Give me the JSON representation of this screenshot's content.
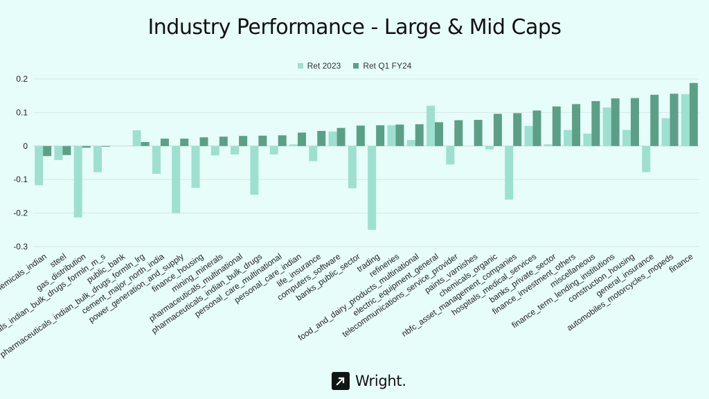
{
  "chart_data": {
    "type": "bar",
    "title": "Industry Performance - Large & Mid Caps",
    "xlabel": "",
    "ylabel": "",
    "ylim": [
      -0.3,
      0.2
    ],
    "yticks": [
      "0.2",
      "0.1",
      "0",
      "-0.1",
      "-0.2",
      "-0.3"
    ],
    "ytick_values": [
      0.2,
      0.1,
      0,
      -0.1,
      -0.2,
      -0.3
    ],
    "grid": true,
    "legend": "top-center",
    "categories": [
      "chemicals_indian",
      "steel",
      "gas_distribution",
      "pharmaceuticals_indian_bulk_drugs_formln_m_s",
      "public_bank",
      "pharmaceuticals_indian_bulk_drugs_formln_lrg",
      "cement_major_north_india",
      "power_generation_and_supply",
      "finance_housing",
      "mining_minerals",
      "pharmaceuticals_multinational",
      "pharmaceuticals_indian_bulk_drugs",
      "personal_care_multinational",
      "personal_care_indian",
      "life_insurance",
      "computers_software",
      "banks_public_sector",
      "trading",
      "refineries",
      "food_and_dairy_products_multinational",
      "electric_equipment_general",
      "telecommunications_service_provider",
      "paints_varnishes",
      "chemicals_organic",
      "nbfc_asset_management_companies",
      "hospitals_medical_services",
      "banks_private_sector",
      "finance_investment_others",
      "miscellaneous",
      "finance_term_lending_institutions",
      "construction_housing",
      "general_insurance",
      "automobiles_motorcycles_mopeds",
      "finance"
    ],
    "series": [
      {
        "name": "Ret 2023",
        "color": "#9ee0cf",
        "values": [
          -0.117,
          -0.042,
          -0.213,
          -0.078,
          0.0,
          0.047,
          -0.083,
          -0.2,
          -0.125,
          -0.028,
          -0.025,
          -0.145,
          -0.025,
          0.005,
          -0.045,
          0.043,
          -0.126,
          -0.25,
          0.062,
          0.018,
          0.12,
          -0.055,
          0.0,
          -0.01,
          -0.16,
          0.06,
          0.005,
          0.048,
          0.037,
          0.115,
          0.048,
          -0.078,
          0.083,
          0.155
        ]
      },
      {
        "name": "Ret Q1 FY24",
        "color": "#5c9f87",
        "values": [
          -0.03,
          -0.027,
          -0.005,
          -0.002,
          0.0,
          0.012,
          0.022,
          0.022,
          0.026,
          0.028,
          0.03,
          0.031,
          0.032,
          0.04,
          0.045,
          0.054,
          0.061,
          0.062,
          0.064,
          0.065,
          0.071,
          0.077,
          0.078,
          0.096,
          0.098,
          0.106,
          0.118,
          0.125,
          0.134,
          0.142,
          0.143,
          0.153,
          0.156,
          0.188
        ]
      }
    ]
  },
  "logo": {
    "text": "Wright."
  }
}
